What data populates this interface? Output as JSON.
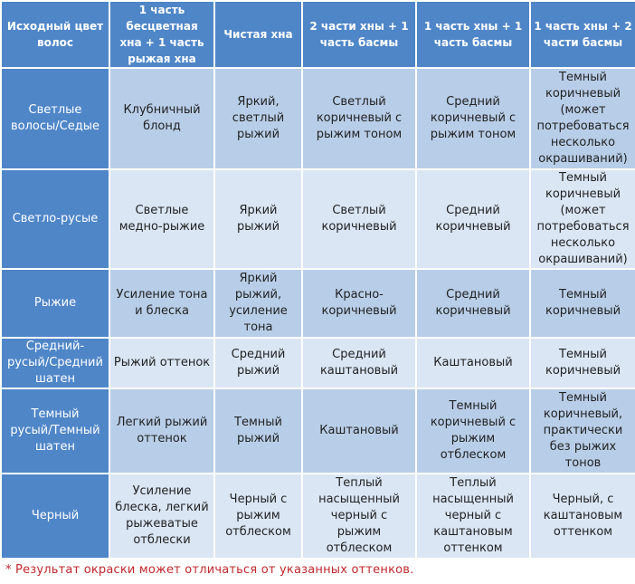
{
  "table": {
    "headers": [
      "Исходный цвет\nволос",
      "1 часть\nбесцветная\nхна + 1 часть\nрыжая хна",
      "Чистая хна",
      "2 части хны + 1\nчасть басмы",
      "1 часть хны + 1\nчасть басмы",
      "1 часть хны + 2\nчасти басмы"
    ],
    "rows": [
      {
        "label": "Светлые\nволосы/Седые",
        "cells": [
          "Клубничный\nблонд",
          "Яркий,\nсветлый\nрыжий",
          "Светлый\nкоричневый с\nрыжим тоном",
          "Средний\nкоричневый с\nрыжим тоном",
          "Темный\nкоричневый\n(может\nпотребоваться\nнесколько\nокрашиваний)"
        ]
      },
      {
        "label": "Светло-русые",
        "cells": [
          "Светлые\nмедно-рыжие",
          "Яркий\nрыжий",
          "Светлый\nкоричневый",
          "Средний\nкоричневый",
          "Темный\nкоричневый\n(может\nпотребоваться\nнесколько\nокрашиваний)"
        ]
      },
      {
        "label": "Рыжие",
        "cells": [
          "Усиление тона\nи блеска",
          "Яркий\nрыжий,\nусиление\nтона",
          "Красно-\nкоричневый",
          "Средний\nкоричневый",
          "Темный\nкоричневый"
        ]
      },
      {
        "label": "Средний-\nрусый/Средний\nшатен",
        "cells": [
          "Рыжий оттенок",
          "Средний\nрыжий",
          "Средний\nкаштановый",
          "Каштановый",
          "Темный\nкоричневый"
        ]
      },
      {
        "label": "Темный\nрусый/Темный\nшатен",
        "cells": [
          "Легкий рыжий\nоттенок",
          "Темный\nрыжий",
          "Каштановый",
          "Темный\nкоричневый с\nрыжим\nотблеском",
          "Темный\nкоричневый,\nпрактически\nбез рыжих\nтонов"
        ]
      },
      {
        "label": "Черный",
        "cells": [
          "Усиление\nблеска, легкий\nрыжеватые\nотблески",
          "Черный с\nрыжим\nотблеском",
          "Теплый\nнасыщенный\nчерный с\nрыжим\nотблеском",
          "Теплый\nнасыщенный\nчерный с\nкаштановым\nоттенком",
          "Черный, с\nкаштановым\nоттенком"
        ]
      }
    ]
  },
  "footnote": "* Результат окраски может отличаться от указанных оттенков."
}
